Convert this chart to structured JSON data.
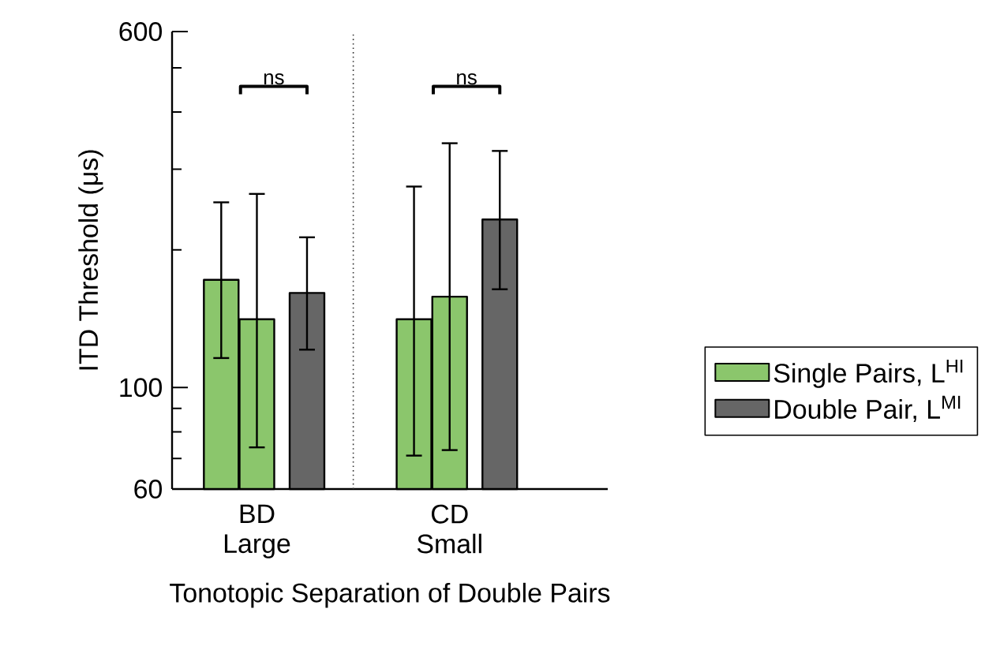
{
  "chart_data": {
    "type": "bar",
    "categories": [
      "BD Large",
      "CD Small"
    ],
    "xlabel": "Tonotopic Separation of Double Pairs",
    "ylabel": "ITD Threshold (μs)",
    "log": "y",
    "ylim": [
      60,
      600
    ],
    "yticks": [
      60,
      {
        "value": 70,
        "label": null
      },
      {
        "value": 80,
        "label": null
      },
      {
        "value": 90,
        "label": null
      },
      100,
      {
        "value": 200,
        "label": null
      },
      {
        "value": 300,
        "label": null
      },
      {
        "value": 400,
        "label": null
      },
      {
        "value": 500,
        "label": null
      },
      600
    ],
    "series": [
      {
        "name": "Single Pairs, L$^{HI}$",
        "color": "#8bc66c",
        "values": [
          172,
          141
        ],
        "errors": [
          [
            116,
            254
          ],
          [
            71,
            275
          ]
        ]
      },
      {
        "color": "#8bc66c",
        "values": [
          141,
          158
        ],
        "errors": [
          [
            74,
            265
          ],
          [
            73,
            342
          ]
        ]
      },
      {
        "name": "Double Pair, L$^{MI}$",
        "color": "#666666",
        "values": [
          161,
          233
        ],
        "errors": [
          [
            121,
            213
          ],
          [
            164,
            329
          ]
        ]
      }
    ],
    "annotations": [
      "ns",
      "ns"
    ],
    "legend": "right"
  }
}
